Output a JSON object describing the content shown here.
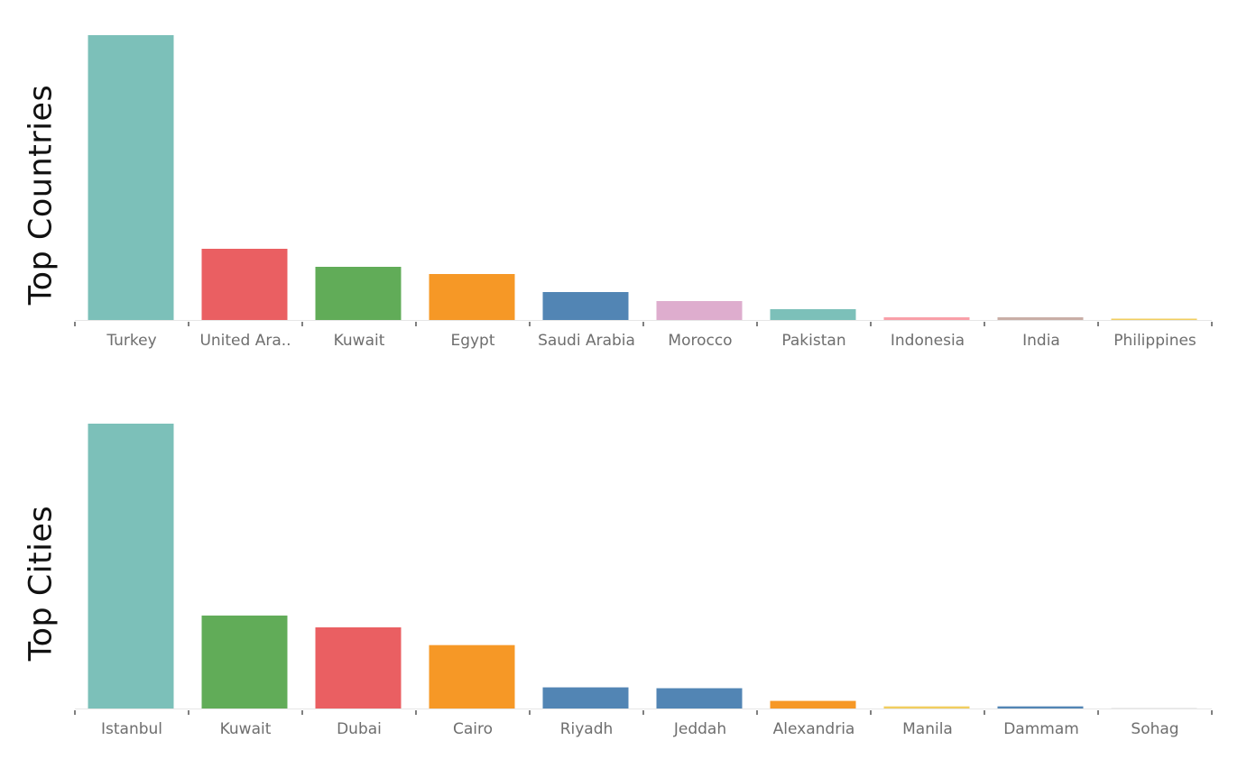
{
  "chart_data": [
    {
      "type": "bar",
      "title": "Top Countries",
      "categories": [
        "Turkey",
        "United Ara..",
        "Kuwait",
        "Egypt",
        "Saudi Arabia",
        "Morocco",
        "Pakistan",
        "Indonesia",
        "India",
        "Philippines"
      ],
      "values": [
        316,
        79,
        59,
        51,
        31,
        21,
        12,
        3,
        3,
        1.5
      ],
      "colors": [
        "#7cc0b9",
        "#ea5f62",
        "#61ac58",
        "#f69826",
        "#5285b4",
        "#deadce",
        "#7cc0b9",
        "#f99fa8",
        "#c9aea6",
        "#f1ce5f"
      ],
      "ylim": [
        0,
        316
      ],
      "grid": false
    },
    {
      "type": "bar",
      "title": "Top Cities",
      "categories": [
        "Istanbul",
        "Kuwait",
        "Dubai",
        "Cairo",
        "Riyadh",
        "Jeddah",
        "Alexandria",
        "Manila",
        "Dammam",
        "Sohag"
      ],
      "values": [
        337,
        110,
        96,
        75,
        25,
        24,
        9,
        2.5,
        2.5,
        0.5
      ],
      "colors": [
        "#7cc0b9",
        "#61ac58",
        "#ea5f62",
        "#f69826",
        "#5285b4",
        "#5285b4",
        "#f69826",
        "#f1ce5f",
        "#5285b4",
        "#ececec"
      ],
      "ylim": [
        0,
        337
      ],
      "grid": false
    }
  ]
}
